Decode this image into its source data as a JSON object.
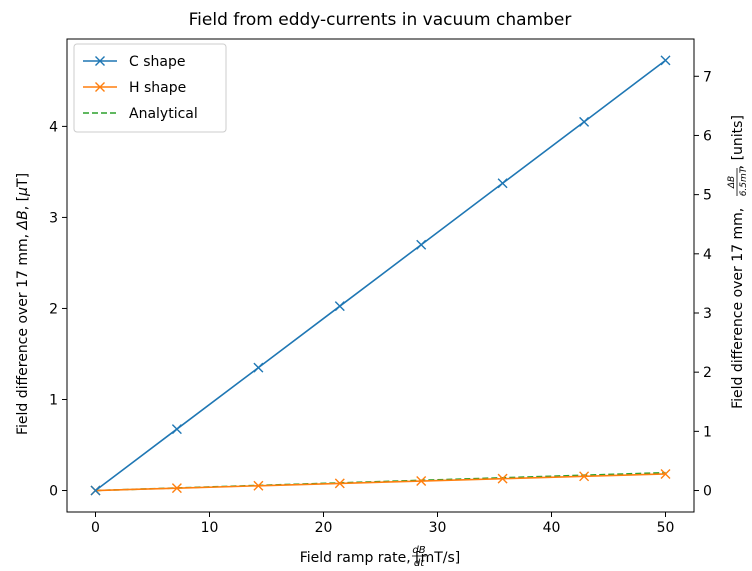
{
  "chart_data": {
    "type": "line",
    "title": "Field from eddy-currents in vacuum chamber",
    "xlabel": "Field ramp rate, [mT/s]",
    "xlabel_fraction": {
      "numerator": "dB",
      "denominator": "dt"
    },
    "ylabel": "Field difference over 17 mm, ΔB, [μT]",
    "ylabel_right": "Field difference over 17 mm, [units]",
    "ylabel_right_fraction": {
      "numerator": "ΔB",
      "denominator": "6.5mT"
    },
    "xlim": [
      -2.5,
      52.5
    ],
    "ylim": [
      -0.236,
      4.96
    ],
    "ylim_right": [
      -0.363,
      7.63
    ],
    "xticks": [
      0,
      10,
      20,
      30,
      40,
      50
    ],
    "yticks": [
      0,
      1,
      2,
      3,
      4
    ],
    "yticks_right": [
      0,
      1,
      2,
      3,
      4,
      5,
      6,
      7
    ],
    "grid": false,
    "legend_position": "top-left",
    "x": [
      0,
      7.14,
      14.29,
      21.43,
      28.57,
      35.71,
      42.86,
      50
    ],
    "series": [
      {
        "name": "C shape",
        "color": "#1f77b4",
        "style": "solid",
        "marker": "x",
        "values": [
          0,
          0.675,
          1.35,
          2.025,
          2.7,
          3.375,
          4.05,
          4.725
        ]
      },
      {
        "name": "H shape",
        "color": "#ff7f0e",
        "style": "solid",
        "marker": "x",
        "values": [
          0,
          0.026,
          0.052,
          0.078,
          0.104,
          0.13,
          0.156,
          0.182
        ]
      },
      {
        "name": "Analytical",
        "color": "#2ca02c",
        "style": "dashed",
        "marker": "none",
        "values": [
          0,
          0.028,
          0.056,
          0.084,
          0.112,
          0.14,
          0.168,
          0.196
        ]
      }
    ]
  }
}
